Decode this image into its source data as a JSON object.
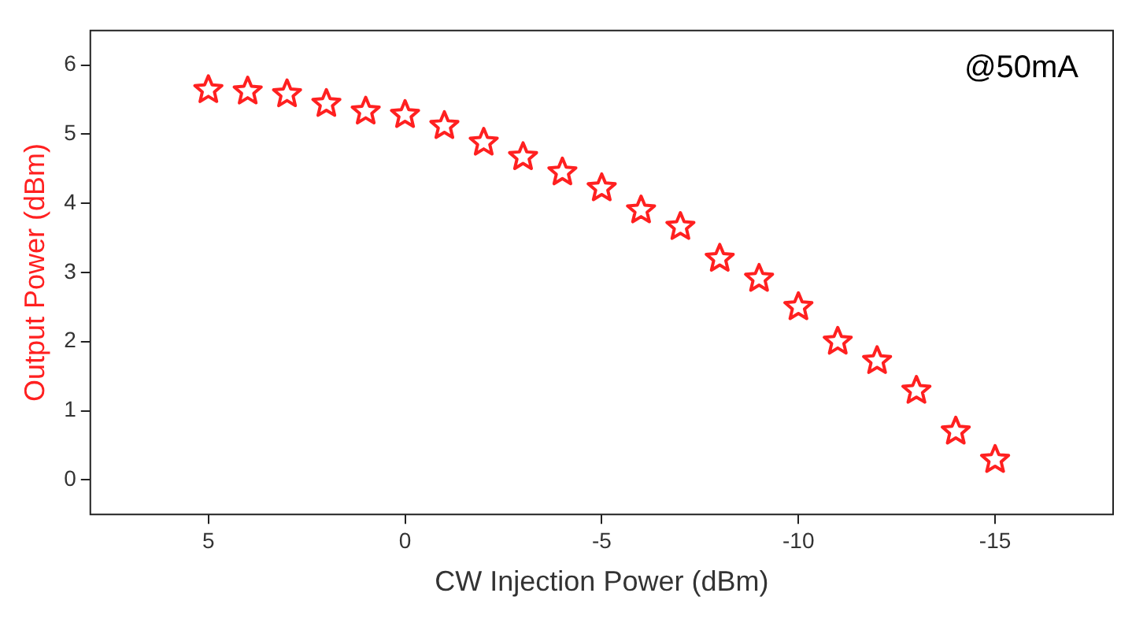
{
  "chart_data": {
    "type": "scatter",
    "xlabel": "CW Injection Power (dBm)",
    "ylabel": "Output Power (dBm)",
    "annotations": [
      "@50mA"
    ],
    "x": [
      5,
      4,
      3,
      2,
      1,
      0,
      -1,
      -2,
      -3,
      -4,
      -5,
      -6,
      -7,
      -8,
      -9,
      -10,
      -11,
      -12,
      -13,
      -14,
      -15
    ],
    "series": [
      {
        "color": "#ff2020",
        "values": [
          5.64,
          5.62,
          5.58,
          5.44,
          5.33,
          5.28,
          5.12,
          4.88,
          4.67,
          4.45,
          4.22,
          3.9,
          3.66,
          3.2,
          2.91,
          2.5,
          2.0,
          1.72,
          1.29,
          0.7,
          0.29
        ]
      }
    ],
    "xlim": [
      8,
      -18
    ],
    "xticks": [
      5,
      0,
      -5,
      -10,
      -15
    ],
    "ylim": [
      -0.5,
      6.5
    ],
    "yticks": [
      0,
      1,
      2,
      3,
      4,
      5,
      6
    ],
    "marker": "star",
    "grid": false,
    "legend": false
  }
}
